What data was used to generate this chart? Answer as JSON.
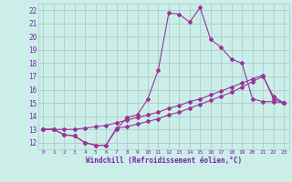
{
  "xlabel": "Windchill (Refroidissement éolien,°C)",
  "xlim": [
    -0.5,
    23.5
  ],
  "ylim": [
    11.5,
    22.5
  ],
  "xticks": [
    0,
    1,
    2,
    3,
    4,
    5,
    6,
    7,
    8,
    9,
    10,
    11,
    12,
    13,
    14,
    15,
    16,
    17,
    18,
    19,
    20,
    21,
    22,
    23
  ],
  "yticks": [
    12,
    13,
    14,
    15,
    16,
    17,
    18,
    19,
    20,
    21,
    22
  ],
  "bg_color": "#cceee8",
  "line_color": "#993399",
  "grid_color": "#aacccc",
  "line1_x": [
    0,
    1,
    2,
    3,
    4,
    5,
    6,
    7,
    8,
    9,
    10,
    11,
    12,
    13,
    14,
    15,
    16,
    17,
    18,
    19,
    20,
    21,
    22,
    23
  ],
  "line1_y": [
    13.0,
    13.0,
    12.6,
    12.5,
    12.0,
    11.8,
    11.8,
    13.0,
    13.9,
    14.1,
    15.3,
    17.5,
    21.8,
    21.7,
    21.1,
    22.2,
    19.8,
    19.2,
    18.3,
    18.0,
    15.3,
    15.1,
    15.1,
    15.0
  ],
  "line2_x": [
    0,
    1,
    2,
    3,
    4,
    5,
    6,
    7,
    8,
    9,
    10,
    11,
    12,
    13,
    14,
    15,
    16,
    17,
    18,
    19,
    20,
    21,
    22,
    23
  ],
  "line2_y": [
    13.0,
    13.0,
    12.6,
    12.5,
    12.0,
    11.8,
    11.8,
    13.1,
    13.2,
    13.4,
    13.6,
    13.8,
    14.1,
    14.3,
    14.6,
    14.9,
    15.2,
    15.5,
    15.8,
    16.2,
    16.6,
    17.0,
    15.5,
    15.0
  ],
  "line3_x": [
    0,
    1,
    2,
    3,
    4,
    5,
    6,
    7,
    8,
    9,
    10,
    11,
    12,
    13,
    14,
    15,
    16,
    17,
    18,
    19,
    20,
    21,
    22,
    23
  ],
  "line3_y": [
    13.0,
    13.0,
    13.0,
    13.0,
    13.1,
    13.2,
    13.3,
    13.5,
    13.7,
    13.9,
    14.1,
    14.3,
    14.6,
    14.8,
    15.1,
    15.3,
    15.6,
    15.9,
    16.2,
    16.5,
    16.8,
    17.1,
    15.3,
    15.0
  ]
}
